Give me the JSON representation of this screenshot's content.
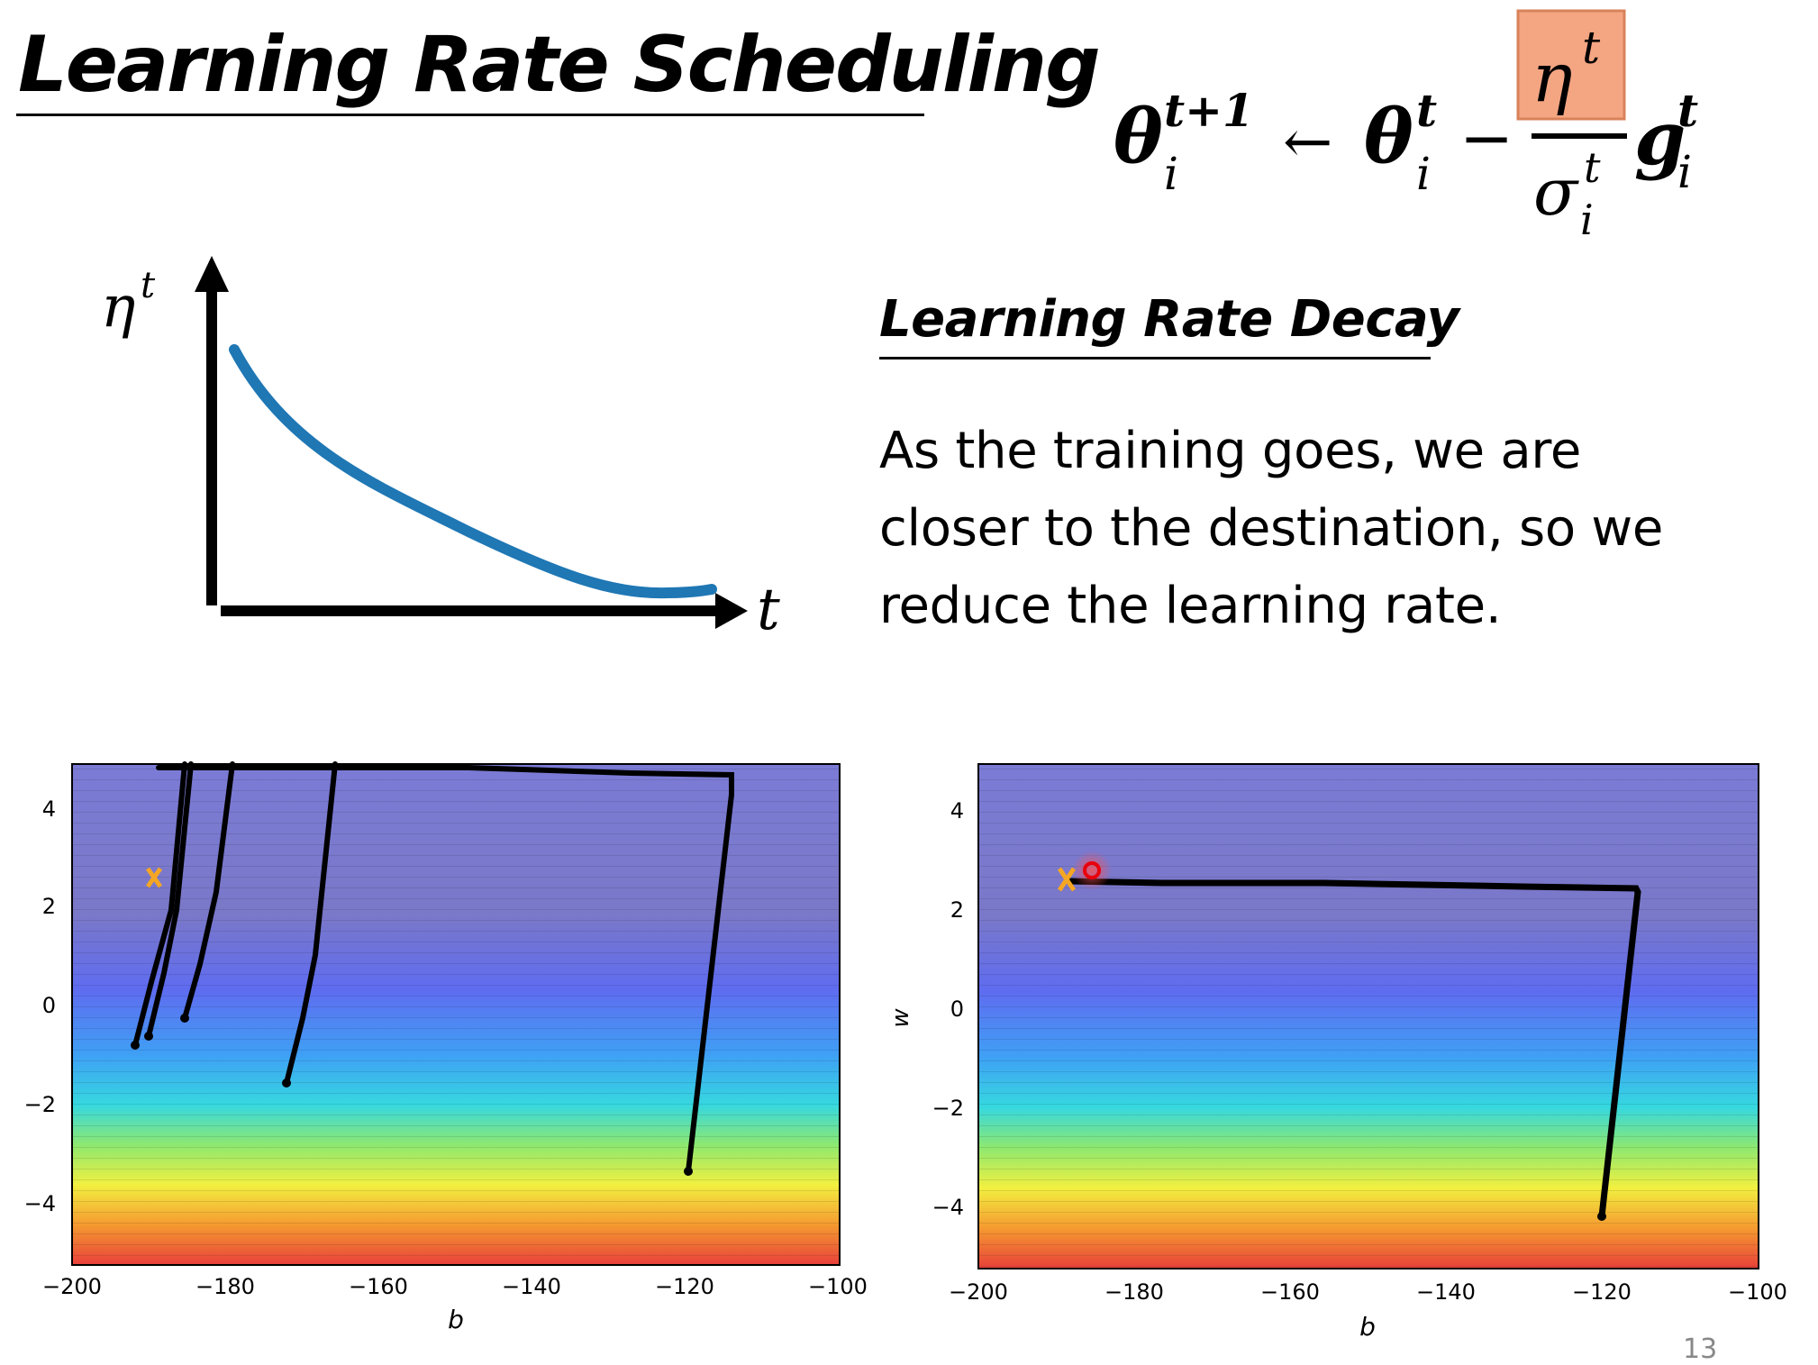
{
  "header_strip": "",
  "title": "Learning Rate Scheduling",
  "formula": {
    "lhs_symbol": "θ",
    "lhs_sup": "t+1",
    "lhs_sub": "i",
    "arrow": "←",
    "rhs_symbol": "θ",
    "rhs_sup": "t",
    "rhs_sub": "i",
    "minus": "−",
    "numerator_symbol": "η",
    "numerator_sup": "t",
    "denominator_symbol": "σ",
    "denominator_sup": "t",
    "denominator_sub": "i",
    "grad_symbol": "g",
    "grad_sup": "t",
    "grad_sub": "i",
    "highlight_color": "#f4a582"
  },
  "decay_curve": {
    "y_axis_symbol": "η",
    "y_axis_sup": "t",
    "x_axis_label": "t",
    "curve_color": "#1f77b4"
  },
  "section": {
    "title": "Learning Rate Decay",
    "lines": [
      "As the training goes, we are",
      "closer to the destination, so we",
      "reduce the learning rate."
    ]
  },
  "plots": {
    "x_ticks": [
      "−200",
      "−180",
      "−160",
      "−140",
      "−120",
      "−100"
    ],
    "y_ticks": [
      "4",
      "2",
      "0",
      "−2",
      "−4"
    ],
    "x_label": "b",
    "left_y_label": "",
    "right_y_label": "w",
    "path_color": "#000000",
    "target_marker_color": "#f5a623",
    "end_marker_color": "#e8000b"
  },
  "page_number": "13"
}
